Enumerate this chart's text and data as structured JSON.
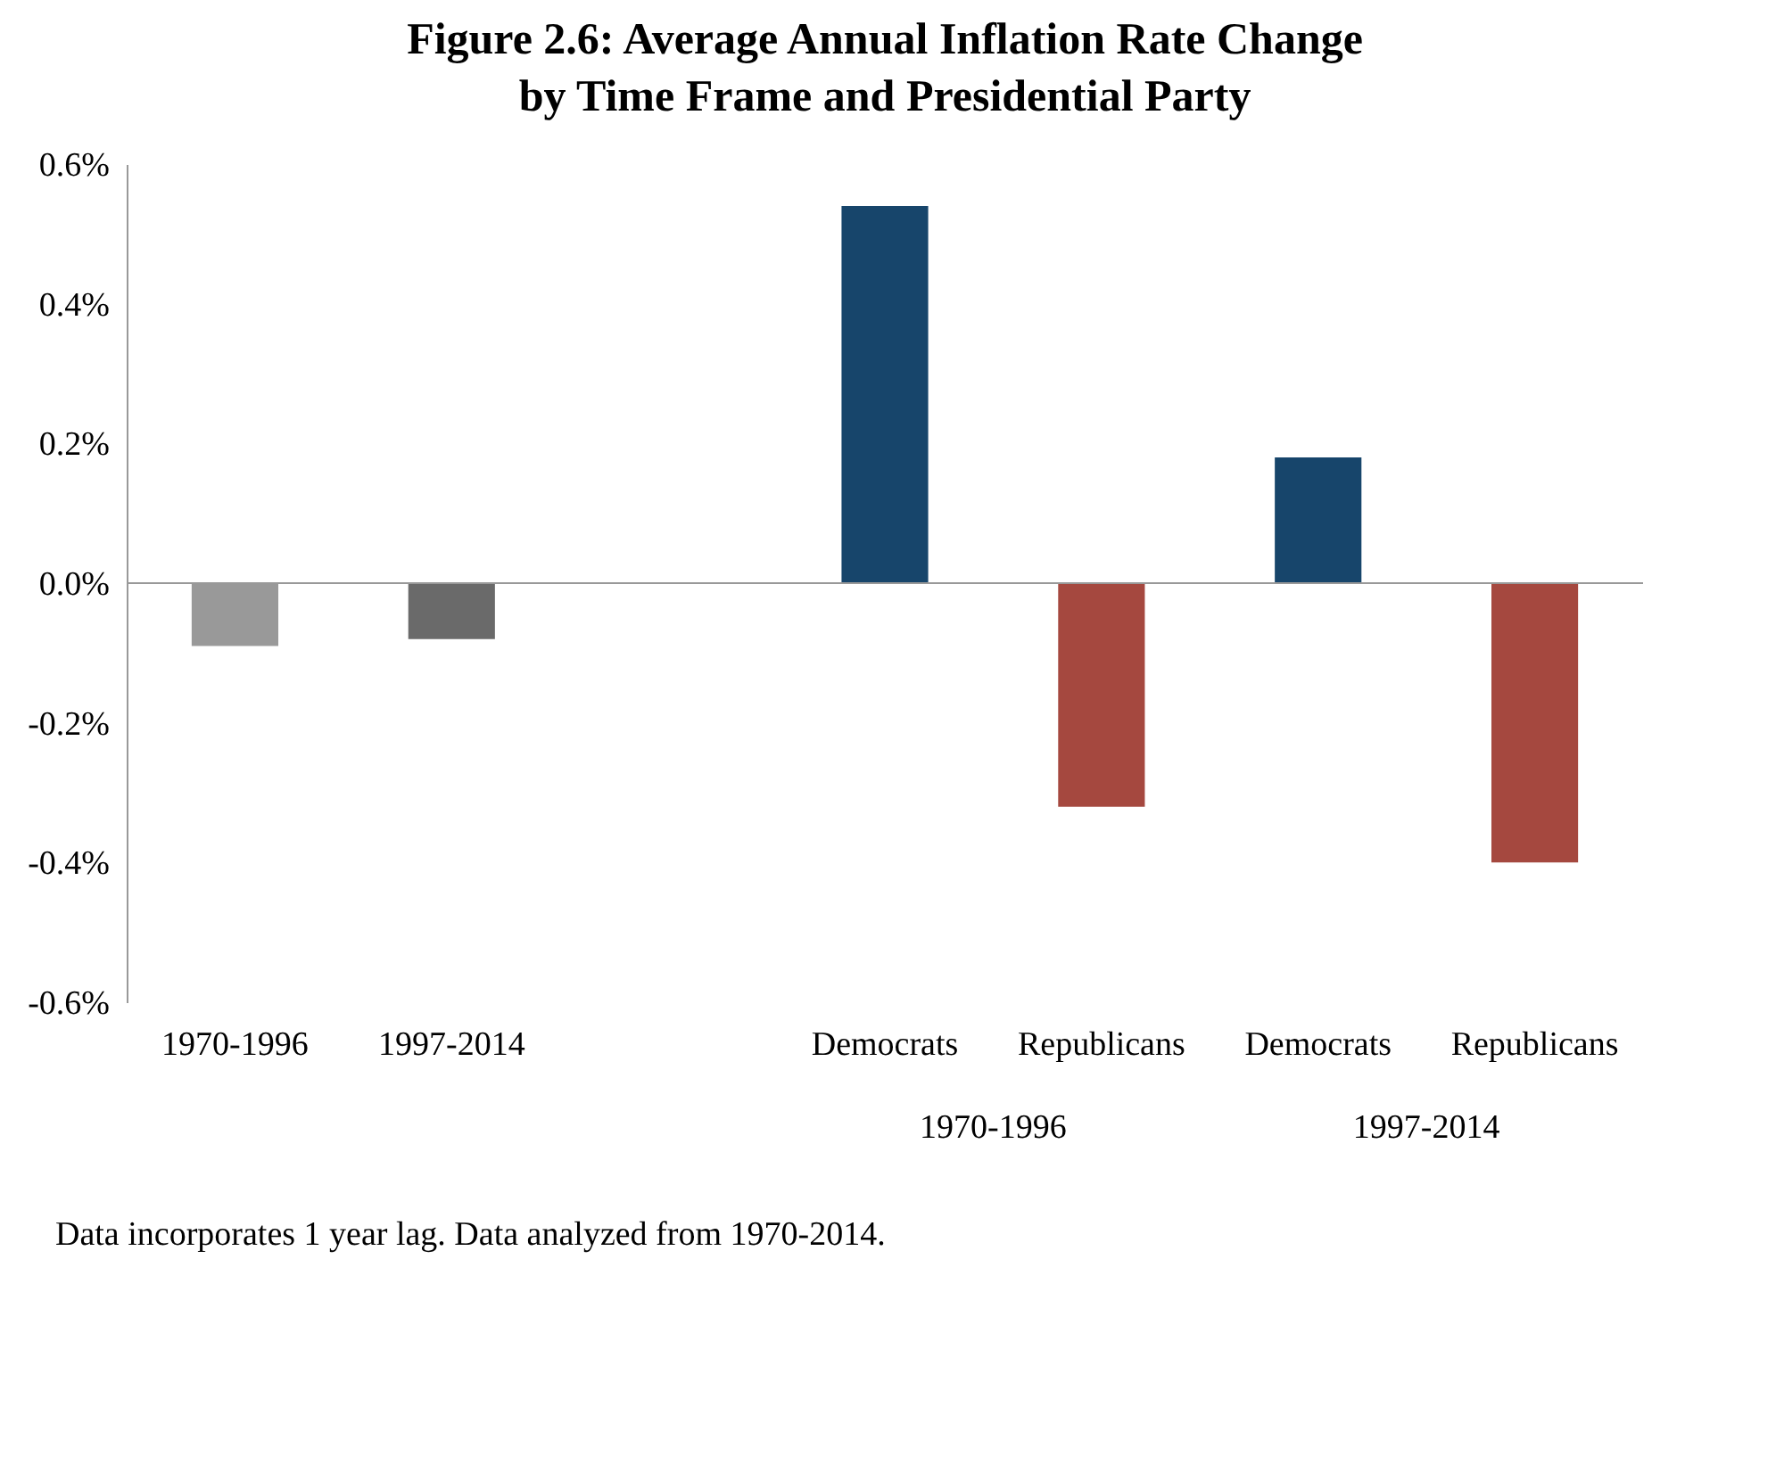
{
  "chart_data": {
    "type": "bar",
    "title": "Figure 2.6: Average Annual Inflation Rate Change by Time Frame and Presidential Party",
    "categories": [
      "1970-1996",
      "1997-2014",
      null,
      "Democrats",
      "Republicans",
      "Democrats",
      "Republicans"
    ],
    "values": [
      -0.09,
      -0.08,
      null,
      0.54,
      -0.32,
      0.18,
      -0.4
    ],
    "colors": [
      "#999999",
      "#6a6a6a",
      null,
      "#17456b",
      "#a5483f",
      "#17456b",
      "#a5483f"
    ],
    "ylim": [
      -0.6,
      0.6
    ],
    "yticks": [
      {
        "value": -0.6,
        "label": "-0.6%"
      },
      {
        "value": -0.4,
        "label": "-0.4%"
      },
      {
        "value": -0.2,
        "label": "-0.2%"
      },
      {
        "value": 0,
        "label": "0.0%"
      },
      {
        "value": 0.2,
        "label": "0.2%"
      },
      {
        "value": 0.4,
        "label": "0.4%"
      },
      {
        "value": 0.6,
        "label": "0.6%"
      }
    ],
    "legend": false,
    "annotations": [
      "1970-1996",
      "1997-2014",
      "Data incorporates 1 year lag. Data analyzed from 1970-2014."
    ]
  }
}
